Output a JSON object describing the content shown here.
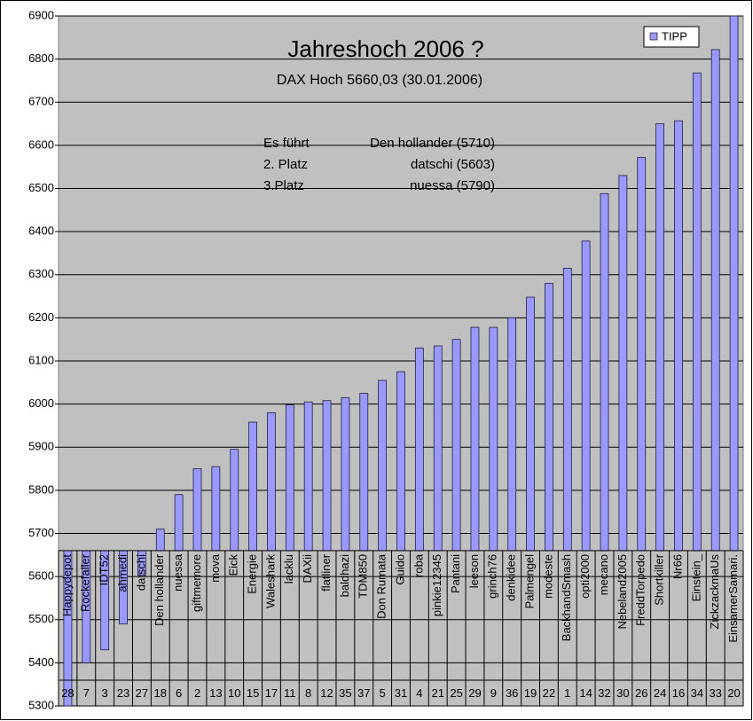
{
  "chart_data": {
    "type": "bar",
    "title": "Jahreshoch 2006 ?",
    "subtitle": "DAX Hoch 5660,03 (30.01.2006)",
    "annotations": [
      [
        "Es führt",
        "Den hollander (5710)"
      ],
      [
        "2. Platz",
        "datschi  (5603)"
      ],
      [
        "3.Platz",
        "nuessa (5790)"
      ]
    ],
    "categories": [
      "Happydepot",
      "Rockefaller",
      "IDT52",
      "ahmedi",
      "datschi",
      "Den hollander",
      "nuessa",
      "giftmemore",
      "mova",
      "Eick",
      "Energie",
      "Waleshark",
      "lacklu",
      "DAXii",
      "flatliner",
      "baldhazi",
      "TDM850",
      "Don Rumata",
      "Guido",
      "roba",
      "pinkie12345",
      "Pantani",
      "leeson",
      "grinch76",
      "denkidee",
      "Palmengel",
      "modeste",
      "BackhandSmash",
      "opti2000",
      "mecano",
      "Nebeland2005",
      "FreddTorpedo",
      "Shortkiller",
      "Nr66",
      "Einstein_",
      "ZickzackmaUs",
      "EinsamerSamari."
    ],
    "ranks": [
      28,
      7,
      3,
      23,
      27,
      18,
      6,
      2,
      13,
      10,
      15,
      17,
      11,
      8,
      12,
      35,
      37,
      5,
      31,
      4,
      21,
      25,
      29,
      9,
      36,
      19,
      22,
      1,
      14,
      32,
      30,
      26,
      24,
      16,
      34,
      33,
      20
    ],
    "series": [
      {
        "name": "TIPP",
        "color": "#9999ff",
        "values": [
          5300,
          5400,
          5430,
          5490,
          5603,
          5710,
          5790,
          5850,
          5855,
          5895,
          5958,
          5980,
          5998,
          6005,
          6008,
          6015,
          6025,
          6055,
          6075,
          6130,
          6135,
          6150,
          6178,
          6178,
          6200,
          6248,
          6280,
          6315,
          6378,
          6488,
          6530,
          6572,
          6650,
          6657,
          6768,
          6822,
          6900
        ]
      }
    ],
    "axis_crosses_at": 5660.03,
    "ylim": [
      5300,
      6900
    ],
    "yticks": [
      5300,
      5400,
      5500,
      5600,
      5700,
      5800,
      5900,
      6000,
      6100,
      6200,
      6300,
      6400,
      6500,
      6600,
      6700,
      6800,
      6900
    ],
    "grid": true,
    "legend": "top-right"
  }
}
